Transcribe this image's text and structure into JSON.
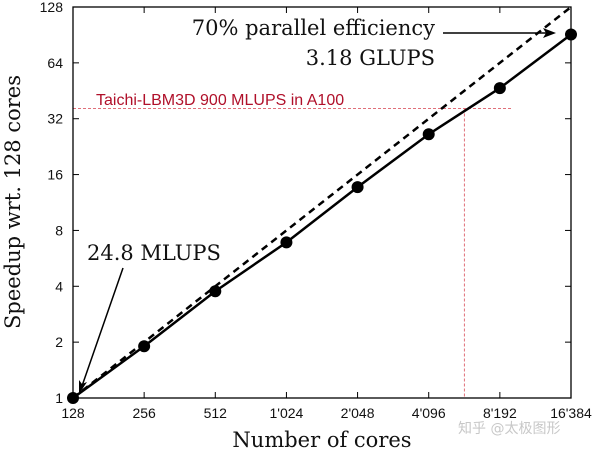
{
  "chart_data": {
    "type": "line",
    "xlabel": "Number of cores",
    "ylabel": "Speedup wrt. 128 cores",
    "x_scale": "log2",
    "y_scale": "log2",
    "xlim": [
      128,
      16384
    ],
    "ylim": [
      1,
      128
    ],
    "x_ticks": [
      128,
      256,
      512,
      1024,
      2048,
      4096,
      8192,
      16384
    ],
    "x_tick_labels": [
      "128",
      "256",
      "512",
      "1'024",
      "2'048",
      "4'096",
      "8'192",
      "16'384"
    ],
    "y_ticks": [
      1,
      2,
      4,
      8,
      16,
      32,
      64,
      128
    ],
    "y_tick_labels": [
      "1",
      "2",
      "4",
      "8",
      "16",
      "32",
      "64",
      "128"
    ],
    "grid": false,
    "series": [
      {
        "style": "solid-with-markers",
        "color": "#000000",
        "x": [
          128,
          256,
          512,
          1024,
          2048,
          4096,
          8192,
          16384
        ],
        "y": [
          1,
          1.9,
          3.76,
          6.9,
          13.7,
          26.4,
          46.8,
          91
        ]
      },
      {
        "style": "dashed",
        "color": "#000000",
        "x": [
          128,
          16384
        ],
        "y": [
          1,
          128
        ]
      }
    ],
    "reference_lines": {
      "color": "#e0707a",
      "horizontal_y": 36.3,
      "vertical_x": 5800
    },
    "annotations": {
      "efficiency": "70% parallel efficiency",
      "glups": "3.18 GLUPS",
      "mlups": "24.8 MLUPS",
      "taichi": "Taichi-LBM3D 900 MLUPS in A100",
      "taichi_color": "#b0102a"
    }
  },
  "watermark": "知乎 @太极图形"
}
